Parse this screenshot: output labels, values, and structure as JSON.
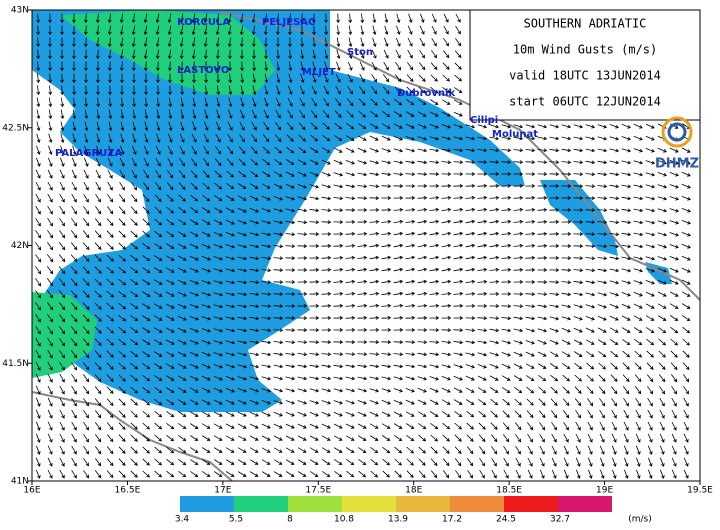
{
  "header": {
    "lines": [
      "SOUTHERN ADRIATIC",
      "10m Wind Gusts (m/s)",
      "valid 18UTC 13JUN2014",
      "start 06UTC 12JUN2014"
    ],
    "logo": "DHMZ"
  },
  "map": {
    "xlim": [
      16,
      19.5
    ],
    "ylim": [
      41,
      43
    ],
    "lon_ticks": [
      {
        "value": 16,
        "label": "16E"
      },
      {
        "value": 16.5,
        "label": "16.5E"
      },
      {
        "value": 17,
        "label": "17E"
      },
      {
        "value": 17.5,
        "label": "17.5E"
      },
      {
        "value": 18,
        "label": "18E"
      },
      {
        "value": 18.5,
        "label": "18.5E"
      },
      {
        "value": 19,
        "label": "19E"
      },
      {
        "value": 19.5,
        "label": "19.5E"
      }
    ],
    "lat_ticks": [
      {
        "value": 41,
        "label": "41N"
      },
      {
        "value": 41.5,
        "label": "41.5N"
      },
      {
        "value": 42,
        "label": "42N"
      },
      {
        "value": 42.5,
        "label": "42.5N"
      },
      {
        "value": 43,
        "label": "43N"
      }
    ],
    "places": [
      "KORCULA",
      "PELJESAC",
      "Ston",
      "LASTOVO",
      "MLJET",
      "Dubrovnik",
      "Cilipi",
      "Molunat",
      "PALAGRUZA"
    ]
  },
  "colorbar": {
    "levels": [
      3.4,
      5.5,
      8,
      10.8,
      13.9,
      17.2,
      24.5,
      32.7
    ],
    "colors": [
      "#1e9ee0",
      "#20cf7c",
      "#9fe03c",
      "#e4e03a",
      "#e8b83c",
      "#ee8c3a",
      "#ee1c1c",
      "#d8186c"
    ],
    "unit": "(m/s)"
  }
}
